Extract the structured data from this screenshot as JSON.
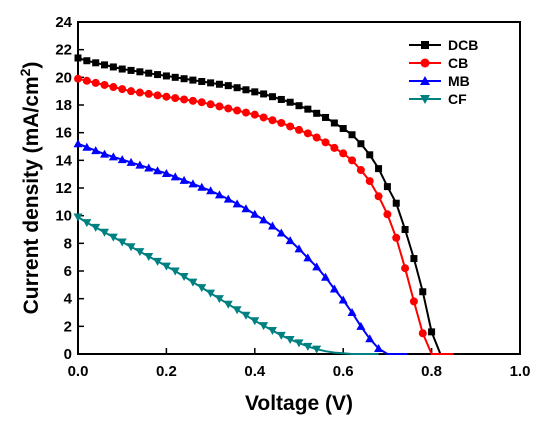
{
  "chart_data": {
    "type": "line",
    "xlabel": "Voltage (V)",
    "ylabel": "Current density (mA/cm",
    "ylabel_superscript": "2",
    "ylabel_close": ")",
    "xlim": [
      0.0,
      1.0
    ],
    "ylim": [
      0,
      24
    ],
    "x_ticks": [
      "0.0",
      "0.2",
      "0.4",
      "0.6",
      "0.8",
      "1.0"
    ],
    "y_ticks": [
      "0",
      "2",
      "4",
      "6",
      "8",
      "10",
      "12",
      "14",
      "16",
      "18",
      "20",
      "22",
      "24"
    ],
    "grid": false,
    "legend_position": "top-right",
    "series": [
      {
        "name": "DCB",
        "color": "#000000",
        "marker": "square",
        "points": [
          [
            0.0,
            21.4
          ],
          [
            0.02,
            21.2
          ],
          [
            0.04,
            21.05
          ],
          [
            0.06,
            20.9
          ],
          [
            0.08,
            20.75
          ],
          [
            0.1,
            20.6
          ],
          [
            0.12,
            20.5
          ],
          [
            0.14,
            20.4
          ],
          [
            0.16,
            20.3
          ],
          [
            0.18,
            20.2
          ],
          [
            0.2,
            20.1
          ],
          [
            0.22,
            20.0
          ],
          [
            0.24,
            19.9
          ],
          [
            0.26,
            19.8
          ],
          [
            0.28,
            19.7
          ],
          [
            0.3,
            19.6
          ],
          [
            0.32,
            19.5
          ],
          [
            0.34,
            19.4
          ],
          [
            0.36,
            19.25
          ],
          [
            0.38,
            19.1
          ],
          [
            0.4,
            18.95
          ],
          [
            0.42,
            18.8
          ],
          [
            0.44,
            18.6
          ],
          [
            0.46,
            18.4
          ],
          [
            0.48,
            18.2
          ],
          [
            0.5,
            17.95
          ],
          [
            0.52,
            17.7
          ],
          [
            0.54,
            17.4
          ],
          [
            0.56,
            17.1
          ],
          [
            0.58,
            16.7
          ],
          [
            0.6,
            16.3
          ],
          [
            0.62,
            15.85
          ],
          [
            0.64,
            15.2
          ],
          [
            0.66,
            14.4
          ],
          [
            0.68,
            13.4
          ],
          [
            0.7,
            12.1
          ],
          [
            0.72,
            10.9
          ],
          [
            0.74,
            9.0
          ],
          [
            0.76,
            6.9
          ],
          [
            0.78,
            4.5
          ],
          [
            0.8,
            1.6
          ],
          [
            0.82,
            0.0
          ],
          [
            0.85,
            0.0
          ]
        ]
      },
      {
        "name": "CB",
        "color": "#ff0000",
        "marker": "circle",
        "points": [
          [
            0.0,
            19.9
          ],
          [
            0.02,
            19.75
          ],
          [
            0.04,
            19.6
          ],
          [
            0.06,
            19.45
          ],
          [
            0.08,
            19.3
          ],
          [
            0.1,
            19.15
          ],
          [
            0.12,
            19.0
          ],
          [
            0.14,
            18.9
          ],
          [
            0.16,
            18.8
          ],
          [
            0.18,
            18.7
          ],
          [
            0.2,
            18.6
          ],
          [
            0.22,
            18.5
          ],
          [
            0.24,
            18.4
          ],
          [
            0.26,
            18.3
          ],
          [
            0.28,
            18.2
          ],
          [
            0.3,
            18.05
          ],
          [
            0.32,
            17.9
          ],
          [
            0.34,
            17.75
          ],
          [
            0.36,
            17.6
          ],
          [
            0.38,
            17.45
          ],
          [
            0.4,
            17.3
          ],
          [
            0.42,
            17.1
          ],
          [
            0.44,
            16.9
          ],
          [
            0.46,
            16.7
          ],
          [
            0.48,
            16.45
          ],
          [
            0.5,
            16.2
          ],
          [
            0.52,
            15.95
          ],
          [
            0.54,
            15.65
          ],
          [
            0.56,
            15.3
          ],
          [
            0.58,
            14.9
          ],
          [
            0.6,
            14.5
          ],
          [
            0.62,
            14.0
          ],
          [
            0.64,
            13.3
          ],
          [
            0.66,
            12.5
          ],
          [
            0.68,
            11.4
          ],
          [
            0.7,
            10.1
          ],
          [
            0.72,
            8.4
          ],
          [
            0.74,
            6.2
          ],
          [
            0.76,
            3.8
          ],
          [
            0.78,
            1.5
          ],
          [
            0.8,
            0.0
          ],
          [
            0.85,
            0.0
          ]
        ]
      },
      {
        "name": "MB",
        "color": "#0000ff",
        "marker": "triangle-up",
        "points": [
          [
            0.0,
            15.2
          ],
          [
            0.02,
            14.95
          ],
          [
            0.04,
            14.7
          ],
          [
            0.06,
            14.45
          ],
          [
            0.08,
            14.25
          ],
          [
            0.1,
            14.05
          ],
          [
            0.12,
            13.85
          ],
          [
            0.14,
            13.65
          ],
          [
            0.16,
            13.45
          ],
          [
            0.18,
            13.25
          ],
          [
            0.2,
            13.05
          ],
          [
            0.22,
            12.8
          ],
          [
            0.24,
            12.55
          ],
          [
            0.26,
            12.3
          ],
          [
            0.28,
            12.05
          ],
          [
            0.3,
            11.8
          ],
          [
            0.32,
            11.5
          ],
          [
            0.34,
            11.2
          ],
          [
            0.36,
            10.85
          ],
          [
            0.38,
            10.5
          ],
          [
            0.4,
            10.1
          ],
          [
            0.42,
            9.7
          ],
          [
            0.44,
            9.25
          ],
          [
            0.46,
            8.75
          ],
          [
            0.48,
            8.2
          ],
          [
            0.5,
            7.6
          ],
          [
            0.52,
            6.95
          ],
          [
            0.54,
            6.3
          ],
          [
            0.56,
            5.55
          ],
          [
            0.58,
            4.7
          ],
          [
            0.6,
            3.9
          ],
          [
            0.62,
            3.0
          ],
          [
            0.64,
            2.0
          ],
          [
            0.66,
            1.1
          ],
          [
            0.68,
            0.4
          ],
          [
            0.7,
            0.0
          ],
          [
            0.745,
            0.0
          ]
        ]
      },
      {
        "name": "CF",
        "color": "#008080",
        "marker": "triangle-down",
        "points": [
          [
            0.0,
            9.9
          ],
          [
            0.02,
            9.5
          ],
          [
            0.04,
            9.15
          ],
          [
            0.06,
            8.8
          ],
          [
            0.08,
            8.45
          ],
          [
            0.1,
            8.1
          ],
          [
            0.12,
            7.75
          ],
          [
            0.14,
            7.4
          ],
          [
            0.16,
            7.05
          ],
          [
            0.18,
            6.7
          ],
          [
            0.2,
            6.35
          ],
          [
            0.22,
            6.0
          ],
          [
            0.24,
            5.6
          ],
          [
            0.26,
            5.2
          ],
          [
            0.28,
            4.8
          ],
          [
            0.3,
            4.4
          ],
          [
            0.32,
            4.0
          ],
          [
            0.34,
            3.6
          ],
          [
            0.36,
            3.2
          ],
          [
            0.38,
            2.8
          ],
          [
            0.4,
            2.4
          ],
          [
            0.42,
            2.05
          ],
          [
            0.44,
            1.7
          ],
          [
            0.46,
            1.35
          ],
          [
            0.48,
            1.05
          ],
          [
            0.5,
            0.8
          ],
          [
            0.52,
            0.55
          ],
          [
            0.54,
            0.35
          ],
          [
            0.56,
            0.2
          ],
          [
            0.58,
            0.1
          ],
          [
            0.6,
            0.05
          ],
          [
            0.62,
            0.0
          ],
          [
            0.64,
            0.0
          ],
          [
            0.66,
            0.0
          ],
          [
            0.68,
            0.0
          ]
        ]
      }
    ]
  }
}
